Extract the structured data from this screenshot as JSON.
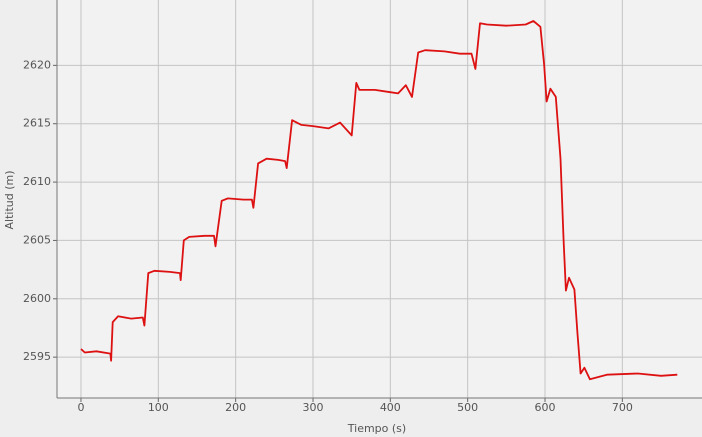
{
  "chart_data": {
    "type": "line",
    "xlabel": "Tiempo (s)",
    "ylabel": "Altitud (m)",
    "x": [
      0,
      5,
      20,
      38,
      39,
      41,
      48,
      65,
      80,
      82,
      87,
      95,
      115,
      128,
      129,
      133,
      140,
      160,
      172,
      174,
      182,
      190,
      210,
      221,
      223,
      229,
      240,
      255,
      264,
      266,
      273,
      285,
      300,
      320,
      335,
      350,
      356,
      360,
      380,
      400,
      410,
      420,
      428,
      436,
      445,
      470,
      490,
      505,
      510,
      516,
      525,
      550,
      575,
      585,
      594,
      599,
      602,
      607,
      614,
      620,
      624,
      627,
      631,
      638,
      642,
      646,
      651,
      658,
      680,
      720,
      750,
      771
    ],
    "values": [
      2595.7,
      2595.4,
      2595.5,
      2595.3,
      2594.7,
      2598.0,
      2598.5,
      2598.3,
      2598.4,
      2597.7,
      2602.2,
      2602.4,
      2602.3,
      2602.2,
      2601.6,
      2605.0,
      2605.3,
      2605.4,
      2605.4,
      2604.5,
      2608.4,
      2608.6,
      2608.5,
      2608.5,
      2607.8,
      2611.6,
      2612.0,
      2611.9,
      2611.8,
      2611.2,
      2615.3,
      2614.9,
      2614.8,
      2614.6,
      2615.1,
      2614.0,
      2618.5,
      2617.9,
      2617.9,
      2617.7,
      2617.6,
      2618.3,
      2617.3,
      2621.1,
      2621.3,
      2621.2,
      2621.0,
      2621.0,
      2619.7,
      2623.6,
      2623.5,
      2623.4,
      2623.5,
      2623.8,
      2623.3,
      2620.0,
      2616.9,
      2618.0,
      2617.3,
      2612.0,
      2605.0,
      2600.7,
      2601.8,
      2600.8,
      2597.0,
      2593.6,
      2594.1,
      2593.1,
      2593.5,
      2593.6,
      2593.4,
      2593.5
    ],
    "color": "#dd1111",
    "xlim": [
      -31,
      803
    ],
    "ylim": [
      2591.5,
      2625.6
    ],
    "xticks": [
      0,
      100,
      200,
      300,
      400,
      500,
      600,
      700
    ],
    "yticks": [
      2595,
      2600,
      2605,
      2610,
      2615,
      2620
    ],
    "grid": true
  }
}
